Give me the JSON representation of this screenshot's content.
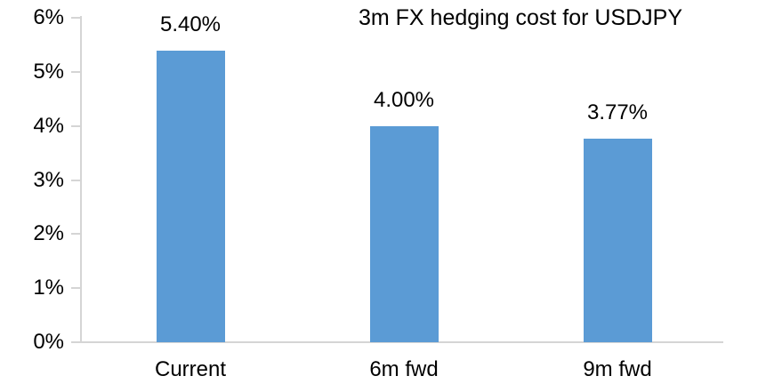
{
  "chart_data": {
    "type": "bar",
    "title": "3m FX hedging cost for USDJPY",
    "categories": [
      "Current",
      "6m fwd",
      "9m fwd"
    ],
    "values": [
      5.4,
      4.0,
      3.77
    ],
    "data_labels": [
      "5.40%",
      "4.00%",
      "3.77%"
    ],
    "y_tick_labels": [
      "0%",
      "1%",
      "2%",
      "3%",
      "4%",
      "5%",
      "6%"
    ],
    "ylim": [
      0,
      6
    ],
    "xlabel": "",
    "ylabel": "",
    "grid": "off",
    "legend": "none",
    "colors": {
      "bar": "#5B9BD5",
      "axis": "#D5D5D5",
      "text": "#000000",
      "background": "#FFFFFF"
    }
  }
}
